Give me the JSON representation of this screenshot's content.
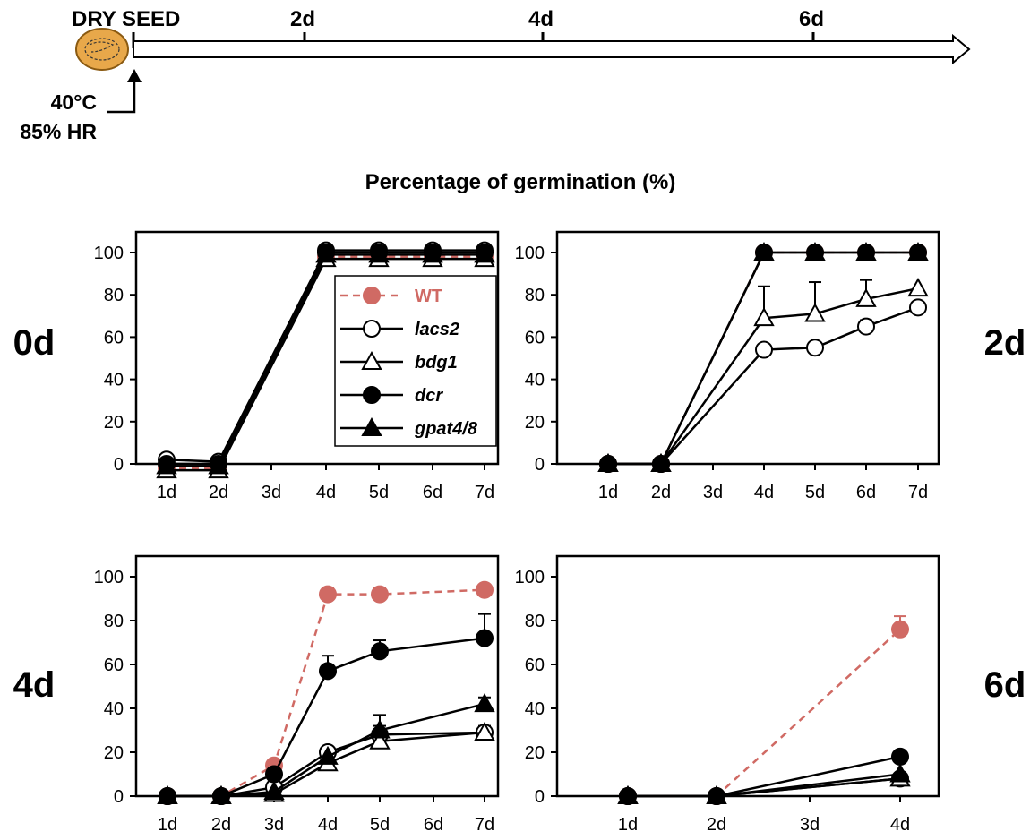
{
  "timeline": {
    "start_label": "DRY SEED",
    "marks": [
      "2d",
      "4d",
      "6d"
    ],
    "treatment_temp": "40°C",
    "treatment_hr": "85% HR",
    "seed_color": "#e8a84a"
  },
  "figure_title": "Percentage of germination (%)",
  "colors": {
    "wt": "#d06a64",
    "mutant": "#000000"
  },
  "legend": [
    {
      "name": "WT",
      "style": "wt"
    },
    {
      "name": "lacs2",
      "style": "open-circle"
    },
    {
      "name": "bdg1",
      "style": "open-triangle"
    },
    {
      "name": "dcr",
      "style": "filled-circle"
    },
    {
      "name": "gpat4/8",
      "style": "filled-triangle"
    }
  ],
  "chart_data": [
    {
      "type": "line",
      "panel_label": "0d",
      "categories": [
        "1d",
        "2d",
        "3d",
        "4d",
        "5d",
        "6d",
        "7d"
      ],
      "ylim": [
        0,
        100
      ],
      "yticks": [
        0,
        20,
        40,
        60,
        80,
        100
      ],
      "series": [
        {
          "name": "WT",
          "style": "wt",
          "x": [
            "1d",
            "2d",
            "4d",
            "5d",
            "6d",
            "7d"
          ],
          "values": [
            -2,
            -2,
            98,
            98,
            98,
            98
          ]
        },
        {
          "name": "lacs2",
          "style": "open-circle",
          "x": [
            "1d",
            "2d",
            "4d",
            "5d",
            "6d",
            "7d"
          ],
          "values": [
            2,
            1,
            101,
            101,
            101,
            101
          ]
        },
        {
          "name": "bdg1",
          "style": "open-triangle",
          "x": [
            "1d",
            "2d",
            "4d",
            "5d",
            "6d",
            "7d"
          ],
          "values": [
            -3,
            -3,
            97,
            97,
            97,
            97
          ]
        },
        {
          "name": "dcr",
          "style": "filled-circle",
          "x": [
            "1d",
            "2d",
            "4d",
            "5d",
            "6d",
            "7d"
          ],
          "values": [
            0,
            0,
            100,
            100,
            100,
            100
          ]
        },
        {
          "name": "gpat4/8",
          "style": "filled-triangle",
          "x": [
            "1d",
            "2d",
            "4d",
            "5d",
            "6d",
            "7d"
          ],
          "values": [
            -1,
            -1,
            99,
            99,
            99,
            99
          ]
        }
      ]
    },
    {
      "type": "line",
      "panel_label": "2d",
      "categories": [
        "1d",
        "2d",
        "3d",
        "4d",
        "5d",
        "6d",
        "7d"
      ],
      "ylim": [
        0,
        100
      ],
      "yticks": [
        0,
        20,
        40,
        60,
        80,
        100
      ],
      "series": [
        {
          "name": "WT",
          "style": "wt",
          "x": [
            "1d",
            "2d",
            "4d",
            "5d",
            "6d",
            "7d"
          ],
          "values": [
            0,
            0,
            100,
            100,
            100,
            100
          ]
        },
        {
          "name": "lacs2",
          "style": "open-circle",
          "x": [
            "1d",
            "2d",
            "4d",
            "5d",
            "6d",
            "7d"
          ],
          "values": [
            0,
            0,
            54,
            55,
            65,
            74
          ],
          "err": [
            0,
            0,
            0,
            0,
            3,
            0
          ]
        },
        {
          "name": "bdg1",
          "style": "open-triangle",
          "x": [
            "1d",
            "2d",
            "4d",
            "5d",
            "6d",
            "7d"
          ],
          "values": [
            0,
            0,
            69,
            71,
            78,
            83
          ],
          "err": [
            0,
            0,
            15,
            15,
            9,
            0
          ]
        },
        {
          "name": "gpat4/8",
          "style": "filled-triangle",
          "x": [
            "1d",
            "2d",
            "4d",
            "5d",
            "6d",
            "7d"
          ],
          "values": [
            0,
            0,
            100,
            100,
            100,
            100
          ]
        },
        {
          "name": "dcr",
          "style": "filled-circle",
          "x": [
            "1d",
            "2d",
            "4d",
            "5d",
            "6d",
            "7d"
          ],
          "values": [
            0,
            0,
            100,
            100,
            100,
            100
          ]
        }
      ]
    },
    {
      "type": "line",
      "panel_label": "4d",
      "categories": [
        "1d",
        "2d",
        "3d",
        "4d",
        "5d",
        "6d",
        "7d"
      ],
      "ylim": [
        0,
        100
      ],
      "yticks": [
        0,
        20,
        40,
        60,
        80,
        100
      ],
      "series": [
        {
          "name": "WT",
          "style": "wt",
          "x": [
            "1d",
            "2d",
            "3d",
            "4d",
            "5d",
            "7d"
          ],
          "values": [
            0,
            0,
            14,
            92,
            92,
            94
          ],
          "err": [
            0,
            0,
            0,
            3,
            3,
            0
          ]
        },
        {
          "name": "lacs2",
          "style": "open-circle",
          "x": [
            "1d",
            "2d",
            "3d",
            "4d",
            "5d",
            "7d"
          ],
          "values": [
            0,
            0,
            4,
            20,
            28,
            29
          ],
          "err": [
            0,
            0,
            0,
            0,
            4,
            3
          ]
        },
        {
          "name": "bdg1",
          "style": "open-triangle",
          "x": [
            "1d",
            "2d",
            "3d",
            "4d",
            "5d",
            "7d"
          ],
          "values": [
            0,
            0,
            1,
            15,
            25,
            29
          ],
          "err": [
            0,
            0,
            0,
            0,
            2,
            0
          ]
        },
        {
          "name": "gpat4/8",
          "style": "filled-triangle",
          "x": [
            "1d",
            "2d",
            "3d",
            "4d",
            "5d",
            "7d"
          ],
          "values": [
            0,
            0,
            2,
            18,
            30,
            42
          ],
          "err": [
            0,
            0,
            0,
            0,
            7,
            3
          ]
        },
        {
          "name": "dcr",
          "style": "filled-circle",
          "x": [
            "1d",
            "2d",
            "3d",
            "4d",
            "5d",
            "7d"
          ],
          "values": [
            0,
            0,
            10,
            57,
            66,
            72
          ],
          "err": [
            0,
            0,
            0,
            7,
            5,
            11
          ]
        }
      ]
    },
    {
      "type": "line",
      "panel_label": "6d",
      "categories": [
        "1d",
        "2d",
        "3d",
        "4d"
      ],
      "ylim": [
        0,
        100
      ],
      "yticks": [
        0,
        20,
        40,
        60,
        80,
        100
      ],
      "series": [
        {
          "name": "WT",
          "style": "wt",
          "x": [
            "1d",
            "2d",
            "4d"
          ],
          "values": [
            0,
            0,
            76
          ],
          "err": [
            0,
            0,
            6
          ]
        },
        {
          "name": "lacs2",
          "style": "open-circle",
          "x": [
            "1d",
            "2d",
            "4d"
          ],
          "values": [
            0,
            0,
            8
          ]
        },
        {
          "name": "bdg1",
          "style": "open-triangle",
          "x": [
            "1d",
            "2d",
            "4d"
          ],
          "values": [
            0,
            0,
            8
          ]
        },
        {
          "name": "gpat4/8",
          "style": "filled-triangle",
          "x": [
            "1d",
            "2d",
            "4d"
          ],
          "values": [
            0,
            0,
            10
          ]
        },
        {
          "name": "dcr",
          "style": "filled-circle",
          "x": [
            "1d",
            "2d",
            "4d"
          ],
          "values": [
            0,
            0,
            18
          ]
        }
      ]
    }
  ]
}
